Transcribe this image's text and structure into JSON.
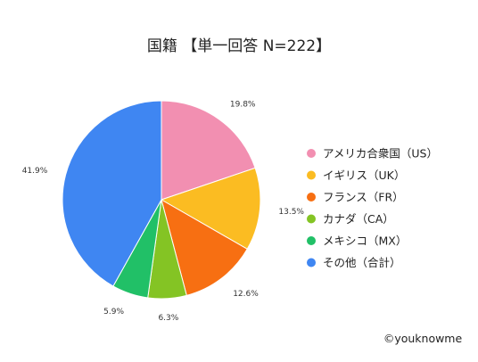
{
  "chart_data": {
    "type": "pie",
    "title": "国籍 【単一回答 N=222】",
    "categories": [
      "アメリカ合衆国（US）",
      "イギリス（UK）",
      "フランス（FR）",
      "カナダ（CA）",
      "メキシコ（MX）",
      "その他（合計）"
    ],
    "values": [
      19.8,
      13.5,
      12.6,
      6.3,
      5.9,
      41.9
    ],
    "value_labels": [
      "19.8%",
      "13.5%",
      "12.6%",
      "6.3%",
      "5.9%",
      "41.9%"
    ],
    "colors": [
      "#f28fb1",
      "#fbbc22",
      "#f76f12",
      "#84c424",
      "#21c067",
      "#3f86f2"
    ],
    "start_angle_deg": 0,
    "direction": "clockwise",
    "legend_position": "right"
  },
  "credit": "©youknowme"
}
